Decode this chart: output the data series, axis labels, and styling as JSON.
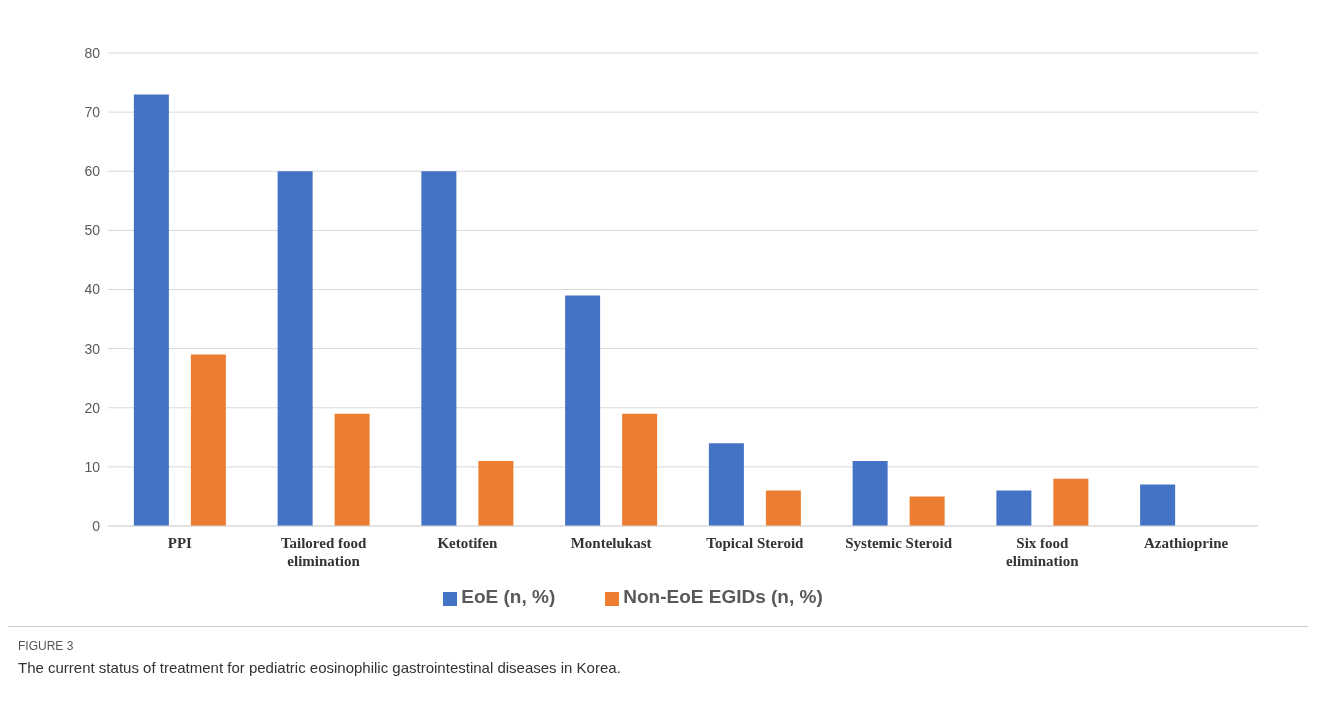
{
  "chart_data": {
    "type": "bar",
    "categories": [
      "PPI",
      "Tailored food elimination",
      "Ketotifen",
      "Montelukast",
      "Topical Steroid",
      "Systemic Steroid",
      "Six food elimination",
      "Azathioprine"
    ],
    "series": [
      {
        "name": "EoE (n, %)",
        "color": "#4472c4",
        "values": [
          73,
          60,
          60,
          39,
          14,
          11,
          6,
          7
        ]
      },
      {
        "name": "Non-EoE EGIDs (n, %)",
        "color": "#ed7d31",
        "values": [
          29,
          19,
          11,
          19,
          6,
          5,
          8,
          0
        ]
      }
    ],
    "ylim": [
      0,
      80
    ],
    "yticks": [
      0,
      10,
      20,
      30,
      40,
      50,
      60,
      70,
      80
    ],
    "grid": "y",
    "legend": "bottom",
    "annotations": [
      "FIGURE 3",
      "The current status of treatment for pediatric eosinophilic gastrointestinal diseases in Korea."
    ]
  }
}
